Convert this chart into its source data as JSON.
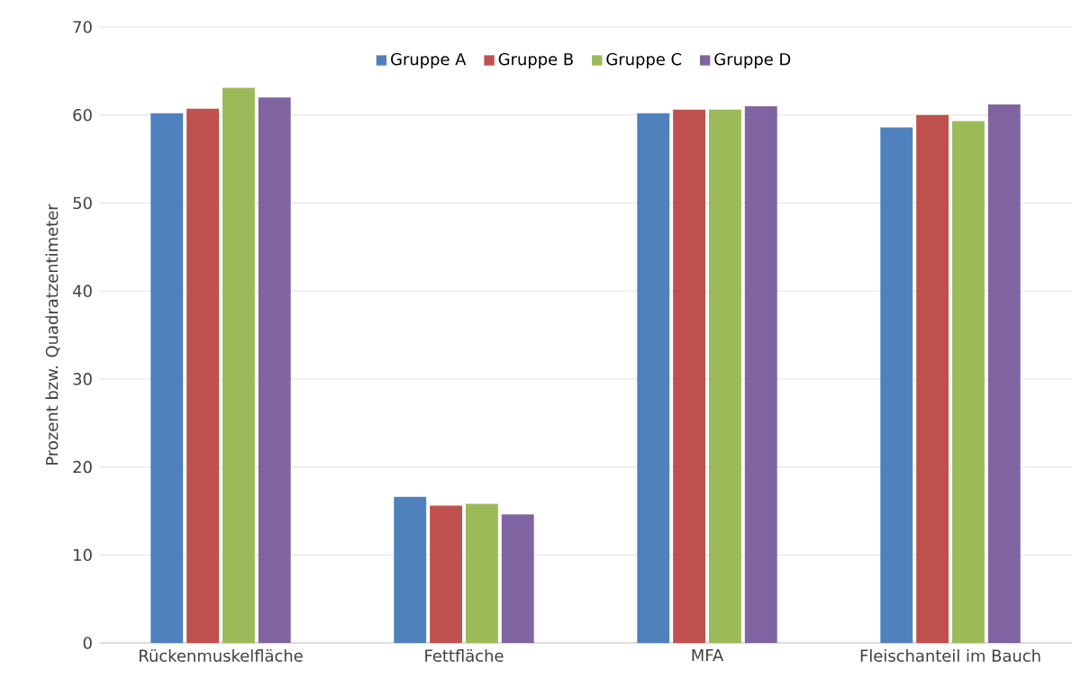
{
  "chart_data": {
    "type": "bar",
    "ylabel": "Prozent bzw. Quadratzentimeter",
    "categories": [
      "Rückenmuskelfläche",
      "Fettfläche",
      "MFA",
      "Fleischanteil im Bauch"
    ],
    "series": [
      {
        "name": "Gruppe A",
        "color": "#4f81bd",
        "values": [
          60.2,
          16.6,
          60.2,
          58.6
        ]
      },
      {
        "name": "Gruppe B",
        "color": "#c0504d",
        "values": [
          60.7,
          15.6,
          60.6,
          60.0
        ]
      },
      {
        "name": "Gruppe C",
        "color": "#9bbb59",
        "values": [
          63.1,
          15.8,
          60.6,
          59.3
        ]
      },
      {
        "name": "Gruppe D",
        "color": "#8064a2",
        "values": [
          62.0,
          14.6,
          61.0,
          61.2
        ]
      }
    ],
    "ylim": [
      0,
      70
    ],
    "yticks": [
      0,
      10,
      20,
      30,
      40,
      50,
      60,
      70
    ],
    "grid": "y",
    "legend": "top"
  }
}
